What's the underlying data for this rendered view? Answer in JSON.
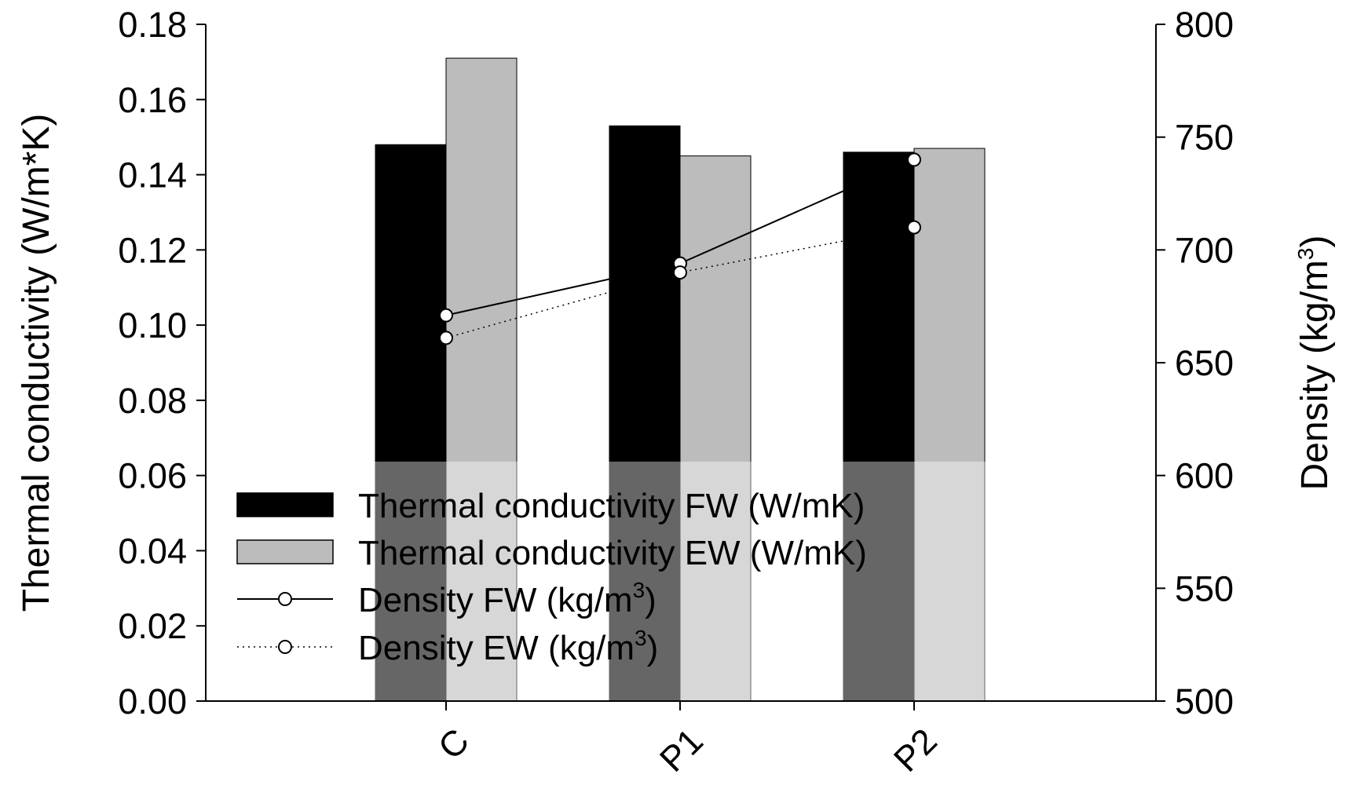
{
  "chart_data": {
    "type": "bar",
    "categories": [
      "C",
      "P1",
      "P2"
    ],
    "series": [
      {
        "name": "Thermal conductivity FW (W/mK)",
        "kind": "bar",
        "axis": "left",
        "color": "#000000",
        "values": [
          0.148,
          0.153,
          0.146
        ]
      },
      {
        "name": "Thermal conductivity EW (W/mK)",
        "kind": "bar",
        "axis": "left",
        "color": "#bcbcbc",
        "values": [
          0.171,
          0.145,
          0.147
        ]
      },
      {
        "name": "Density FW (kg/m3)",
        "kind": "line",
        "style": "solid",
        "axis": "right",
        "values": [
          671,
          694,
          740
        ]
      },
      {
        "name": "Density EW (kg/m3)",
        "kind": "line",
        "style": "dotted",
        "axis": "right",
        "values": [
          661,
          690,
          710
        ]
      }
    ],
    "y_left": {
      "label": "Thermal conductivity (W/m*K)",
      "lim": [
        0,
        0.18
      ],
      "ticks": [
        "0.00",
        "0.02",
        "0.04",
        "0.06",
        "0.08",
        "0.10",
        "0.12",
        "0.14",
        "0.16",
        "0.18"
      ]
    },
    "y_right": {
      "label_main": "Density (kg/m",
      "label_sup": "3",
      "label_close": ")",
      "lim": [
        500,
        800
      ],
      "ticks": [
        "500",
        "550",
        "600",
        "650",
        "700",
        "750",
        "800"
      ]
    },
    "legend": {
      "position": "lower-left",
      "items": [
        {
          "text": "Thermal conductivity FW (W/mK)",
          "sup": "",
          "close": ""
        },
        {
          "text": "Thermal conductivity EW (W/mK)",
          "sup": "",
          "close": ""
        },
        {
          "text": "Density FW (kg/m",
          "sup": "3",
          "close": ")"
        },
        {
          "text": "Density EW (kg/m",
          "sup": "3",
          "close": ")"
        }
      ]
    }
  }
}
